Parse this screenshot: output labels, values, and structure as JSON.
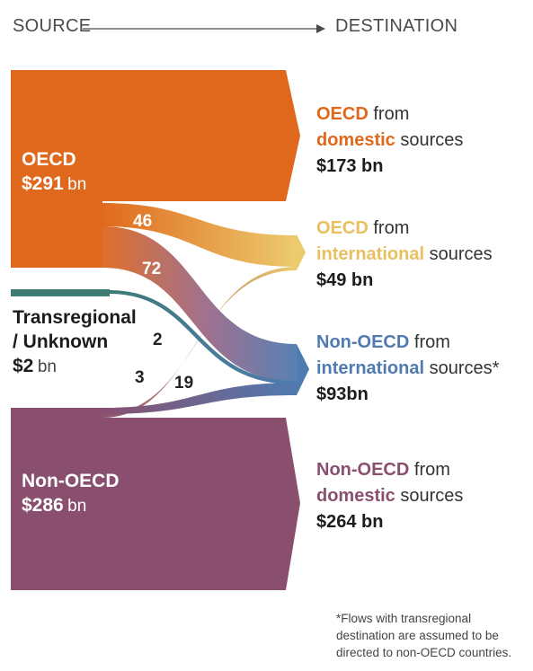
{
  "header": {
    "source": "SOURCE",
    "destination": "DESTINATION"
  },
  "colors": {
    "oecd": "#e0681c",
    "oecd_international": "#eccb6e",
    "transregional": "#3d7b73",
    "non_oecd_international": "#4f7bb0",
    "non_oecd": "#8a4f6e"
  },
  "sources": {
    "oecd": {
      "name": "OECD",
      "amount": "$291",
      "unit": "bn"
    },
    "trans": {
      "name_line1": "Transregional",
      "name_line2": "/ Unknown",
      "amount": "$2",
      "unit": "bn"
    },
    "non_oecd": {
      "name": "Non-OECD",
      "amount": "$286",
      "unit": "bn"
    }
  },
  "flows": {
    "oecd_to_oecd_international": "46",
    "oecd_to_non_oecd_international": "72",
    "trans_to_non_oecd_international": "2",
    "non_oecd_to_oecd_international": "3",
    "non_oecd_to_non_oecd_international": "19"
  },
  "destinations": {
    "d1": {
      "w1": "OECD",
      "w2": "from",
      "w3": "domestic",
      "w4": "sources",
      "amount": "$173 bn"
    },
    "d2": {
      "w1": "OECD",
      "w2": "from",
      "w3": "international",
      "w4": "sources",
      "amount": "$49 bn"
    },
    "d3": {
      "w1": "Non-OECD",
      "w2": "from",
      "w3": "international",
      "w4": "sources*",
      "amount": "$93bn"
    },
    "d4": {
      "w1": "Non-OECD",
      "w2": "from",
      "w3": "domestic",
      "w4": "sources",
      "amount": "$264 bn"
    }
  },
  "footnote": {
    "line1": "*Flows with transregional",
    "line2": "destination are assumed to be",
    "line3": "directed to non-OECD countries."
  }
}
